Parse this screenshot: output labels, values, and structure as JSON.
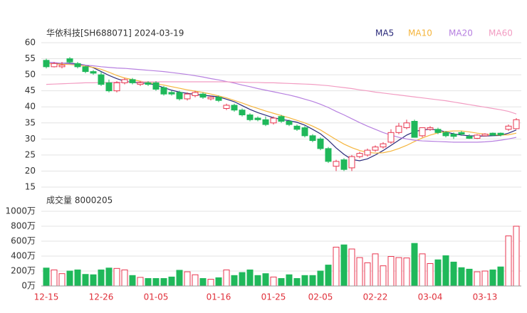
{
  "chart_data": [
    {
      "type": "candlestick",
      "title": "华依科技[SH688071] 2024-03-19",
      "ylim": [
        15,
        60
      ],
      "yticks": [
        15,
        20,
        25,
        30,
        35,
        40,
        45,
        50,
        55,
        60
      ],
      "grid": true,
      "up_color": "#e8364f",
      "down_color": "#1fb85a",
      "open": [
        54.5,
        52.5,
        52.5,
        55,
        53.5,
        52.5,
        51,
        50,
        47.5,
        45,
        47.5,
        48.5,
        47,
        47.5,
        47.5,
        46,
        44.5,
        44.5,
        42.5,
        43.5,
        44,
        42.5,
        43,
        39.5,
        40.5,
        39,
        37.5,
        36.5,
        36,
        35,
        37,
        35.5,
        34,
        33.5,
        31,
        30,
        27,
        21.5,
        23.5,
        21,
        24.5,
        25,
        26.5,
        27.5,
        29,
        32,
        33.5,
        35.5,
        31,
        33,
        33,
        32,
        31.5,
        32,
        30.8,
        30.2,
        31,
        31.8,
        31.8,
        33,
        33.2
      ],
      "high": [
        55,
        54,
        54,
        55.5,
        54,
        52.8,
        51.5,
        51,
        48.5,
        48,
        49,
        49,
        48,
        48,
        48,
        46.5,
        45,
        45,
        44.5,
        45,
        44.5,
        43.5,
        43.5,
        41,
        41,
        39.5,
        38,
        37,
        37,
        37,
        37.5,
        36,
        34.5,
        34,
        31.5,
        30.5,
        27.5,
        23.5,
        24,
        25,
        26,
        27,
        28,
        29,
        33,
        35,
        36,
        36,
        33.5,
        34,
        33.5,
        32.5,
        32,
        32.5,
        31.5,
        31.5,
        31.8,
        32,
        32,
        34.5,
        36.5
      ],
      "low": [
        52,
        52.3,
        52,
        53.5,
        52,
        50.5,
        50,
        46.5,
        44.5,
        44.5,
        47,
        47,
        46.5,
        46.5,
        45,
        43.5,
        43.5,
        42,
        42,
        43,
        42.5,
        42,
        41.5,
        39,
        38.5,
        37,
        35.5,
        35.5,
        34,
        34.5,
        35,
        34,
        32.5,
        30.5,
        29,
        26.5,
        22.5,
        20,
        20,
        20,
        24,
        24.5,
        26,
        27,
        28.5,
        31.5,
        33,
        30.5,
        30.5,
        32.5,
        31.5,
        30.5,
        30,
        31,
        30,
        30,
        30.8,
        31,
        30.8,
        32.5,
        33
      ],
      "close": [
        52.5,
        53.5,
        53,
        54,
        52.5,
        51,
        50.5,
        47,
        45,
        47.5,
        48.5,
        47.5,
        47.5,
        47,
        45.5,
        44,
        44,
        42.5,
        44,
        44.5,
        43,
        43,
        42,
        40.5,
        39,
        37.5,
        36,
        36,
        34.5,
        36.5,
        35.5,
        34.5,
        33,
        31,
        29.5,
        27,
        23,
        23,
        20.5,
        24.5,
        25.5,
        26.5,
        27.5,
        28.5,
        32,
        34,
        35,
        30.5,
        33.5,
        33.5,
        32,
        31,
        30.8,
        31.5,
        30.2,
        31.2,
        31.5,
        31.2,
        31.3,
        34,
        36
      ],
      "series": [
        {
          "name": "MA5",
          "color": "#2a2a7a",
          "values": [
            53.5,
            53.5,
            53.6,
            53.6,
            53.4,
            53,
            52.2,
            51,
            49.8,
            48.8,
            48,
            47.6,
            47.5,
            47.3,
            46.8,
            46,
            45.2,
            44.6,
            44.2,
            43.9,
            43.6,
            43.4,
            43.1,
            42.4,
            41.6,
            40.4,
            39.2,
            38.2,
            37.4,
            36.6,
            36.1,
            35.7,
            35.2,
            34.3,
            33,
            31.6,
            29.6,
            27.2,
            25.2,
            23.6,
            23.2,
            23.8,
            25,
            26.4,
            28,
            29.6,
            31.2,
            32.3,
            32.8,
            33,
            32.8,
            32.2,
            31.6,
            31.2,
            31,
            30.9,
            30.9,
            31,
            31.1,
            31.8,
            32.8
          ]
        },
        {
          "name": "MA10",
          "color": "#f5b53d",
          "values": [
            53.5,
            53.4,
            53.3,
            53.2,
            53,
            52.7,
            52.3,
            51.7,
            50.8,
            49.8,
            49,
            48.5,
            48,
            47.6,
            47.2,
            46.8,
            46.3,
            45.8,
            45.3,
            44.9,
            44.5,
            44,
            43.4,
            42.8,
            42,
            41.2,
            40.3,
            39.5,
            38.7,
            38,
            37.3,
            36.6,
            35.8,
            35,
            34,
            32.8,
            31.3,
            29.8,
            28.4,
            27.3,
            26.4,
            25.8,
            25.6,
            25.7,
            26.2,
            27,
            28,
            29.2,
            30.3,
            31.2,
            31.9,
            32.3,
            32.5,
            32.5,
            32.2,
            31.8,
            31.5,
            31.3,
            31.2,
            31.3,
            31.8
          ]
        },
        {
          "name": "MA20",
          "color": "#b780e0",
          "values": [
            54,
            53.8,
            53.6,
            53.4,
            53.2,
            53,
            52.8,
            52.5,
            52.3,
            52.1,
            52,
            51.8,
            51.6,
            51.4,
            51.2,
            51,
            50.7,
            50.4,
            50.1,
            49.7,
            49.3,
            48.8,
            48.4,
            47.9,
            47.4,
            46.8,
            46.3,
            45.7,
            45.2,
            44.7,
            44.2,
            43.7,
            43.1,
            42.4,
            41.7,
            40.8,
            39.8,
            38.6,
            37.5,
            36.3,
            35.1,
            34,
            33,
            32,
            31.2,
            30.5,
            30,
            29.6,
            29.4,
            29.3,
            29.2,
            29.1,
            29,
            29,
            29,
            29,
            29.1,
            29.3,
            29.6,
            30,
            30.5
          ]
        },
        {
          "name": "MA60",
          "color": "#f29cc2",
          "values": [
            47,
            47.1,
            47.2,
            47.3,
            47.4,
            47.5,
            47.5,
            47.6,
            47.6,
            47.7,
            47.7,
            47.7,
            47.8,
            47.8,
            47.8,
            47.8,
            47.8,
            47.8,
            47.8,
            47.8,
            47.8,
            47.8,
            47.8,
            47.8,
            47.7,
            47.7,
            47.6,
            47.6,
            47.5,
            47.5,
            47.4,
            47.3,
            47.2,
            47.1,
            47,
            46.8,
            46.6,
            46.3,
            46,
            45.7,
            45.3,
            45,
            44.6,
            44.3,
            44,
            43.7,
            43.4,
            43.1,
            42.8,
            42.5,
            42.2,
            41.9,
            41.5,
            41.1,
            40.7,
            40.3,
            39.9,
            39.5,
            39.1,
            38.6,
            37.8
          ]
        }
      ]
    },
    {
      "type": "bar",
      "title": "成交量 8000205",
      "categories": [
        "12-15",
        null,
        null,
        null,
        null,
        null,
        null,
        "12-26",
        null,
        null,
        null,
        null,
        null,
        null,
        "01-05",
        null,
        null,
        null,
        null,
        null,
        null,
        null,
        "01-16",
        null,
        null,
        null,
        null,
        null,
        null,
        "01-25",
        null,
        null,
        null,
        null,
        null,
        "02-05",
        null,
        null,
        null,
        null,
        null,
        null,
        "02-22",
        null,
        null,
        null,
        null,
        null,
        null,
        "03-04",
        null,
        null,
        null,
        null,
        null,
        null,
        "03-13",
        null,
        null,
        null,
        null
      ],
      "values": [
        240,
        215,
        165,
        200,
        215,
        155,
        150,
        215,
        240,
        235,
        215,
        140,
        115,
        100,
        100,
        100,
        120,
        210,
        190,
        150,
        100,
        90,
        110,
        215,
        140,
        180,
        215,
        140,
        165,
        120,
        100,
        150,
        100,
        140,
        140,
        200,
        280,
        520,
        550,
        495,
        380,
        310,
        430,
        270,
        395,
        380,
        375,
        570,
        430,
        300,
        350,
        405,
        320,
        245,
        225,
        190,
        200,
        215,
        255,
        670,
        800
      ],
      "ylim": [
        0,
        1000
      ],
      "yticks": [
        {
          "value": 0,
          "label": "0万"
        },
        {
          "value": 200,
          "label": "200万"
        },
        {
          "value": 400,
          "label": "400万"
        },
        {
          "value": 600,
          "label": "600万"
        },
        {
          "value": 800,
          "label": "800万"
        },
        {
          "value": 1000,
          "label": "1000万"
        }
      ],
      "grid": true,
      "label_color": "#e0303a"
    }
  ]
}
